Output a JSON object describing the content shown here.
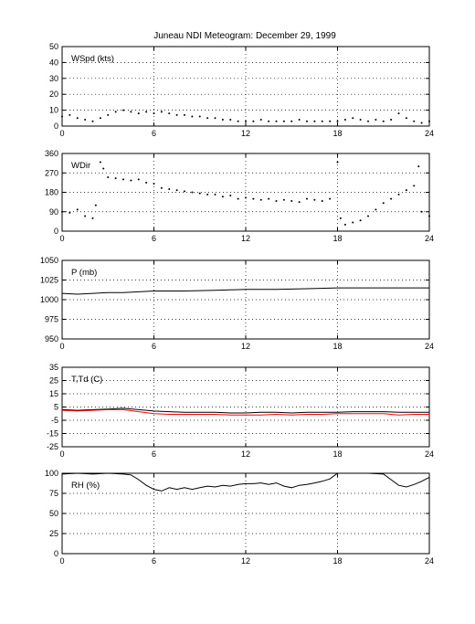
{
  "title": "Juneau NDI Meteogram:  December 29, 1999",
  "colors": {
    "primary": "#000000",
    "secondary": "#ff0000",
    "grid": "#000000"
  },
  "chart_data": [
    {
      "type": "line",
      "label": "WSpd (kts)",
      "ylim": [
        0,
        50
      ],
      "yticks": [
        0,
        10,
        20,
        30,
        40,
        50
      ],
      "xlim": [
        0,
        24
      ],
      "xticks": [
        0,
        6,
        12,
        18,
        24
      ],
      "grid": true,
      "style": "dots",
      "series": [
        {
          "values": [
            [
              0,
              6
            ],
            [
              0.5,
              7
            ],
            [
              1,
              5
            ],
            [
              1.5,
              4
            ],
            [
              2,
              3
            ],
            [
              2.5,
              5
            ],
            [
              3,
              7
            ],
            [
              3.5,
              9
            ],
            [
              4,
              10
            ],
            [
              4.5,
              9
            ],
            [
              5,
              8
            ],
            [
              5.5,
              9
            ],
            [
              6,
              8
            ],
            [
              6.5,
              9
            ],
            [
              7,
              8
            ],
            [
              7.5,
              7
            ],
            [
              8,
              7
            ],
            [
              8.5,
              6
            ],
            [
              9,
              6
            ],
            [
              9.5,
              5
            ],
            [
              10,
              5
            ],
            [
              10.5,
              4
            ],
            [
              11,
              4
            ],
            [
              11.5,
              3
            ],
            [
              12,
              3
            ],
            [
              12.5,
              3
            ],
            [
              13,
              4
            ],
            [
              13.5,
              3
            ],
            [
              14,
              3
            ],
            [
              14.5,
              3
            ],
            [
              15,
              3
            ],
            [
              15.5,
              4
            ],
            [
              16,
              3
            ],
            [
              16.5,
              3
            ],
            [
              17,
              3
            ],
            [
              17.5,
              3
            ],
            [
              18,
              3
            ],
            [
              18.5,
              4
            ],
            [
              19,
              5
            ],
            [
              19.5,
              4
            ],
            [
              20,
              3
            ],
            [
              20.5,
              4
            ],
            [
              21,
              3
            ],
            [
              21.5,
              4
            ],
            [
              22,
              8
            ],
            [
              22.5,
              5
            ],
            [
              23,
              3
            ],
            [
              23.5,
              2
            ],
            [
              24,
              3
            ]
          ]
        }
      ]
    },
    {
      "type": "scatter",
      "label": "WDir",
      "ylim": [
        0,
        360
      ],
      "yticks": [
        0,
        90,
        180,
        270,
        360
      ],
      "xlim": [
        0,
        24
      ],
      "xticks": [
        0,
        6,
        12,
        18,
        24
      ],
      "grid": true,
      "style": "dots",
      "series": [
        {
          "values": [
            [
              0,
              90
            ],
            [
              0.5,
              85
            ],
            [
              1,
              100
            ],
            [
              1.5,
              70
            ],
            [
              2,
              60
            ],
            [
              2.2,
              120
            ],
            [
              2.5,
              320
            ],
            [
              2.7,
              290
            ],
            [
              3,
              250
            ],
            [
              3.5,
              245
            ],
            [
              4,
              240
            ],
            [
              4.5,
              235
            ],
            [
              5,
              240
            ],
            [
              5.5,
              225
            ],
            [
              6,
              220
            ],
            [
              6.5,
              200
            ],
            [
              7,
              195
            ],
            [
              7.5,
              190
            ],
            [
              8,
              185
            ],
            [
              8.5,
              180
            ],
            [
              9,
              175
            ],
            [
              9.5,
              170
            ],
            [
              10,
              170
            ],
            [
              10.5,
              160
            ],
            [
              11,
              165
            ],
            [
              11.5,
              150
            ],
            [
              12,
              155
            ],
            [
              12.5,
              150
            ],
            [
              13,
              145
            ],
            [
              13.5,
              150
            ],
            [
              14,
              140
            ],
            [
              14.5,
              145
            ],
            [
              15,
              140
            ],
            [
              15.5,
              135
            ],
            [
              16,
              150
            ],
            [
              16.5,
              145
            ],
            [
              17,
              140
            ],
            [
              17.5,
              150
            ],
            [
              18,
              320
            ],
            [
              18.2,
              60
            ],
            [
              18.5,
              30
            ],
            [
              19,
              40
            ],
            [
              19.5,
              50
            ],
            [
              20,
              70
            ],
            [
              20.5,
              100
            ],
            [
              21,
              130
            ],
            [
              21.5,
              150
            ],
            [
              22,
              170
            ],
            [
              22.5,
              190
            ],
            [
              23,
              210
            ],
            [
              23.3,
              300
            ],
            [
              23.5,
              90
            ],
            [
              24,
              70
            ]
          ]
        }
      ]
    },
    {
      "type": "line",
      "label": "P (mb)",
      "ylim": [
        950,
        1050
      ],
      "yticks": [
        950,
        975,
        1000,
        1025,
        1050
      ],
      "xlim": [
        0,
        24
      ],
      "xticks": [
        0,
        6,
        12,
        18,
        24
      ],
      "grid": true,
      "style": "line",
      "series": [
        {
          "values": [
            [
              0,
              1008
            ],
            [
              1,
              1007
            ],
            [
              2,
              1008
            ],
            [
              3,
              1009
            ],
            [
              4,
              1009
            ],
            [
              5,
              1010
            ],
            [
              6,
              1011
            ],
            [
              8,
              1011
            ],
            [
              10,
              1012
            ],
            [
              12,
              1013
            ],
            [
              14,
              1013
            ],
            [
              16,
              1014
            ],
            [
              18,
              1015
            ],
            [
              20,
              1015
            ],
            [
              22,
              1015
            ],
            [
              24,
              1015
            ]
          ]
        }
      ]
    },
    {
      "type": "line",
      "label": "T,Td (C)",
      "ylim": [
        -25,
        35
      ],
      "yticks": [
        -25,
        -15,
        -5,
        5,
        15,
        25,
        35
      ],
      "xlim": [
        0,
        24
      ],
      "xticks": [
        0,
        6,
        12,
        18,
        24
      ],
      "grid": true,
      "style": "line",
      "series": [
        {
          "values": [
            [
              0,
              3
            ],
            [
              1,
              2.5
            ],
            [
              2,
              3
            ],
            [
              3,
              3.5
            ],
            [
              4,
              4
            ],
            [
              5,
              3
            ],
            [
              6,
              2
            ],
            [
              7,
              1.5
            ],
            [
              8,
              1
            ],
            [
              9,
              1
            ],
            [
              10,
              1
            ],
            [
              11,
              0.5
            ],
            [
              12,
              0.5
            ],
            [
              13,
              1
            ],
            [
              14,
              1
            ],
            [
              15,
              0.5
            ],
            [
              16,
              1
            ],
            [
              17,
              1
            ],
            [
              18,
              1
            ],
            [
              19,
              1.5
            ],
            [
              20,
              1.5
            ],
            [
              21,
              1.5
            ],
            [
              22,
              1
            ],
            [
              23,
              1
            ],
            [
              24,
              1
            ]
          ]
        },
        {
          "values": [
            [
              0,
              2.5
            ],
            [
              1,
              2
            ],
            [
              2,
              2.5
            ],
            [
              3,
              3
            ],
            [
              4,
              3
            ],
            [
              5,
              1.5
            ],
            [
              6,
              0
            ],
            [
              7,
              -0.5
            ],
            [
              8,
              -0.5
            ],
            [
              9,
              -0.5
            ],
            [
              10,
              -0.5
            ],
            [
              11,
              -1
            ],
            [
              12,
              -1
            ],
            [
              13,
              -1
            ],
            [
              14,
              -0.5
            ],
            [
              15,
              -1
            ],
            [
              16,
              -0.5
            ],
            [
              17,
              -0.5
            ],
            [
              18,
              0
            ],
            [
              19,
              0
            ],
            [
              20,
              0
            ],
            [
              21,
              0
            ],
            [
              22,
              -1
            ],
            [
              23,
              -0.5
            ],
            [
              24,
              -0.5
            ]
          ]
        }
      ]
    },
    {
      "type": "line",
      "label": "RH (%)",
      "ylim": [
        0,
        100
      ],
      "yticks": [
        0,
        25,
        50,
        75,
        100
      ],
      "xlim": [
        0,
        24
      ],
      "xticks": [
        0,
        6,
        12,
        18,
        24
      ],
      "grid": true,
      "style": "line",
      "series": [
        {
          "values": [
            [
              0,
              99
            ],
            [
              1,
              100
            ],
            [
              2,
              99
            ],
            [
              3,
              100
            ],
            [
              4,
              99
            ],
            [
              4.5,
              98
            ],
            [
              5,
              92
            ],
            [
              5.5,
              85
            ],
            [
              6,
              80
            ],
            [
              6.5,
              78
            ],
            [
              7,
              82
            ],
            [
              7.5,
              80
            ],
            [
              8,
              82
            ],
            [
              8.5,
              80
            ],
            [
              9,
              82
            ],
            [
              9.5,
              84
            ],
            [
              10,
              83
            ],
            [
              10.5,
              85
            ],
            [
              11,
              84
            ],
            [
              11.5,
              86
            ],
            [
              12,
              87
            ],
            [
              12.5,
              87
            ],
            [
              13,
              88
            ],
            [
              13.5,
              86
            ],
            [
              14,
              88
            ],
            [
              14.5,
              84
            ],
            [
              15,
              82
            ],
            [
              15.5,
              85
            ],
            [
              16,
              86
            ],
            [
              16.5,
              88
            ],
            [
              17,
              90
            ],
            [
              17.5,
              93
            ],
            [
              18,
              100
            ],
            [
              19,
              100
            ],
            [
              20,
              100
            ],
            [
              21,
              99
            ],
            [
              21.5,
              92
            ],
            [
              22,
              85
            ],
            [
              22.5,
              83
            ],
            [
              23,
              86
            ],
            [
              23.5,
              90
            ],
            [
              24,
              95
            ]
          ]
        }
      ]
    }
  ]
}
